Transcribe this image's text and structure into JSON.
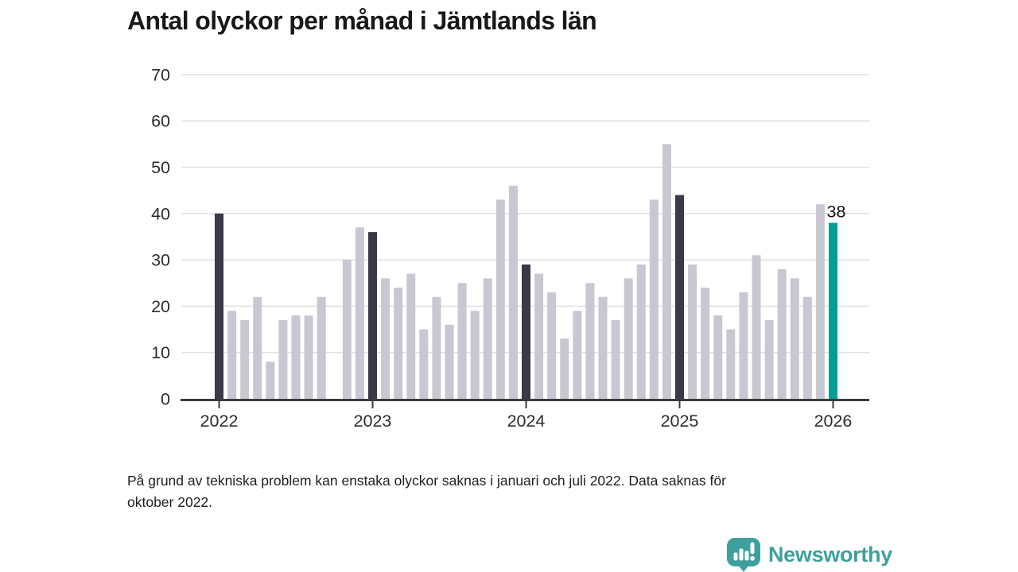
{
  "title": "Antal olyckor per månad i Jämtlands län",
  "footnote_lines": [
    "På grund av tekniska problem kan enstaka olyckor saknas i januari och juli 2022. Data saknas för",
    "oktober 2022."
  ],
  "branding": {
    "name": "Newsworthy"
  },
  "colors": {
    "bar_default": "#c9c7d1",
    "bar_january": "#3b3947",
    "bar_highlight": "#009e94",
    "gridline": "#e2e2e2",
    "axis_line": "#3b3b3b",
    "tick_label": "#2d2d2d",
    "value_label": "#111111",
    "brand_teal": "#3da09d"
  },
  "chart_data": {
    "type": "bar",
    "title": "Antal olyckor per månad i Jämtlands län",
    "xlabel": "",
    "ylabel": "",
    "ylim": [
      0,
      70
    ],
    "yticks": [
      0,
      10,
      20,
      30,
      40,
      50,
      60,
      70
    ],
    "year_ticks": [
      2022,
      2023,
      2024,
      2025,
      2026
    ],
    "grid": "horizontal",
    "legend": "none",
    "points": [
      {
        "month": "2022-01",
        "value": 40,
        "kind": "january"
      },
      {
        "month": "2022-02",
        "value": 19,
        "kind": "default"
      },
      {
        "month": "2022-03",
        "value": 17,
        "kind": "default"
      },
      {
        "month": "2022-04",
        "value": 22,
        "kind": "default"
      },
      {
        "month": "2022-05",
        "value": 8,
        "kind": "default"
      },
      {
        "month": "2022-06",
        "value": 17,
        "kind": "default"
      },
      {
        "month": "2022-07",
        "value": 18,
        "kind": "default"
      },
      {
        "month": "2022-08",
        "value": 18,
        "kind": "default"
      },
      {
        "month": "2022-09",
        "value": 22,
        "kind": "default"
      },
      {
        "month": "2022-10",
        "value": null,
        "kind": "missing"
      },
      {
        "month": "2022-11",
        "value": 30,
        "kind": "default"
      },
      {
        "month": "2022-12",
        "value": 37,
        "kind": "default"
      },
      {
        "month": "2023-01",
        "value": 36,
        "kind": "january"
      },
      {
        "month": "2023-02",
        "value": 26,
        "kind": "default"
      },
      {
        "month": "2023-03",
        "value": 24,
        "kind": "default"
      },
      {
        "month": "2023-04",
        "value": 27,
        "kind": "default"
      },
      {
        "month": "2023-05",
        "value": 15,
        "kind": "default"
      },
      {
        "month": "2023-06",
        "value": 22,
        "kind": "default"
      },
      {
        "month": "2023-07",
        "value": 16,
        "kind": "default"
      },
      {
        "month": "2023-08",
        "value": 25,
        "kind": "default"
      },
      {
        "month": "2023-09",
        "value": 19,
        "kind": "default"
      },
      {
        "month": "2023-10",
        "value": 26,
        "kind": "default"
      },
      {
        "month": "2023-11",
        "value": 43,
        "kind": "default"
      },
      {
        "month": "2023-12",
        "value": 46,
        "kind": "default"
      },
      {
        "month": "2024-01",
        "value": 29,
        "kind": "january"
      },
      {
        "month": "2024-02",
        "value": 27,
        "kind": "default"
      },
      {
        "month": "2024-03",
        "value": 23,
        "kind": "default"
      },
      {
        "month": "2024-04",
        "value": 13,
        "kind": "default"
      },
      {
        "month": "2024-05",
        "value": 19,
        "kind": "default"
      },
      {
        "month": "2024-06",
        "value": 25,
        "kind": "default"
      },
      {
        "month": "2024-07",
        "value": 22,
        "kind": "default"
      },
      {
        "month": "2024-08",
        "value": 17,
        "kind": "default"
      },
      {
        "month": "2024-09",
        "value": 26,
        "kind": "default"
      },
      {
        "month": "2024-10",
        "value": 29,
        "kind": "default"
      },
      {
        "month": "2024-11",
        "value": 43,
        "kind": "default"
      },
      {
        "month": "2024-12",
        "value": 55,
        "kind": "default"
      },
      {
        "month": "2025-01",
        "value": 44,
        "kind": "january"
      },
      {
        "month": "2025-02",
        "value": 29,
        "kind": "default"
      },
      {
        "month": "2025-03",
        "value": 24,
        "kind": "default"
      },
      {
        "month": "2025-04",
        "value": 18,
        "kind": "default"
      },
      {
        "month": "2025-05",
        "value": 15,
        "kind": "default"
      },
      {
        "month": "2025-06",
        "value": 23,
        "kind": "default"
      },
      {
        "month": "2025-07",
        "value": 31,
        "kind": "default"
      },
      {
        "month": "2025-08",
        "value": 17,
        "kind": "default"
      },
      {
        "month": "2025-09",
        "value": 28,
        "kind": "default"
      },
      {
        "month": "2025-10",
        "value": 26,
        "kind": "default"
      },
      {
        "month": "2025-11",
        "value": 22,
        "kind": "default"
      },
      {
        "month": "2025-12",
        "value": 42,
        "kind": "default"
      },
      {
        "month": "2026-01",
        "value": 38,
        "kind": "highlight",
        "label": "38"
      }
    ]
  }
}
